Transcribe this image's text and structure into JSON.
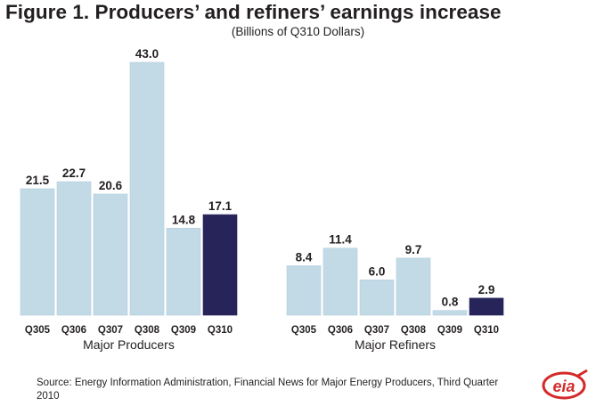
{
  "title": "Figure 1. Producers’ and refiners’ earnings increase",
  "subtitle": "(Billions of Q310 Dollars)",
  "colors": {
    "historical": "#c2d9e6",
    "current": "#27245a",
    "text": "#231f20",
    "logo_red": "#d42a2a"
  },
  "chart_data": [
    {
      "type": "bar",
      "group_label": "Major Producers",
      "categories": [
        "Q305",
        "Q306",
        "Q307",
        "Q308",
        "Q309",
        "Q310"
      ],
      "values": [
        21.5,
        22.7,
        20.6,
        43.0,
        14.8,
        17.1
      ],
      "labels": [
        "21.5",
        "22.7",
        "20.6",
        "43.0",
        "14.8",
        "17.1"
      ],
      "highlight": "Q310",
      "ylim": [
        0,
        43.0
      ]
    },
    {
      "type": "bar",
      "group_label": "Major Refiners",
      "categories": [
        "Q305",
        "Q306",
        "Q307",
        "Q308",
        "Q309",
        "Q310"
      ],
      "values": [
        8.4,
        11.4,
        6.0,
        9.7,
        0.8,
        2.9
      ],
      "labels": [
        "8.4",
        "11.4",
        "6.0",
        "9.7",
        "0.8",
        "2.9"
      ],
      "highlight": "Q310",
      "ylim": [
        0,
        43.0
      ]
    }
  ],
  "source_text": "Source: Energy Information Administration, Financial News for Major Energy Producers, Third Quarter 2010",
  "logo_text": "eia"
}
